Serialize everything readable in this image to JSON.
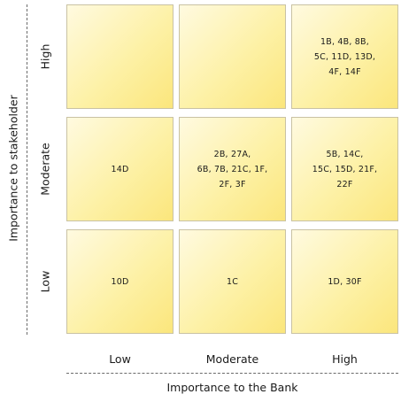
{
  "axes": {
    "y_title": "Importance to stakeholder",
    "x_title": "Importance to the Bank",
    "y_ticks": {
      "high": "High",
      "moderate": "Moderate",
      "low": "Low"
    },
    "x_ticks": {
      "low": "Low",
      "moderate": "Moderate",
      "high": "High"
    }
  },
  "cells": {
    "high_low": "",
    "high_moderate": "",
    "high_high": "1B, 4B, 8B,\n5C, 11D, 13D,\n4F, 14F",
    "moderate_low": "14D",
    "moderate_moderate": "2B, 27A,\n6B, 7B, 21C, 1F,\n2F, 3F",
    "moderate_high": "5B, 14C,\n15C, 15D, 21F,\n22F",
    "low_low": "10D",
    "low_moderate": "1C",
    "low_high": "1D, 30F"
  },
  "colors": {
    "cell_fill_light": "#fffae0",
    "cell_fill_dark": "#fbe67c",
    "cell_border": "#c9c2a3"
  }
}
